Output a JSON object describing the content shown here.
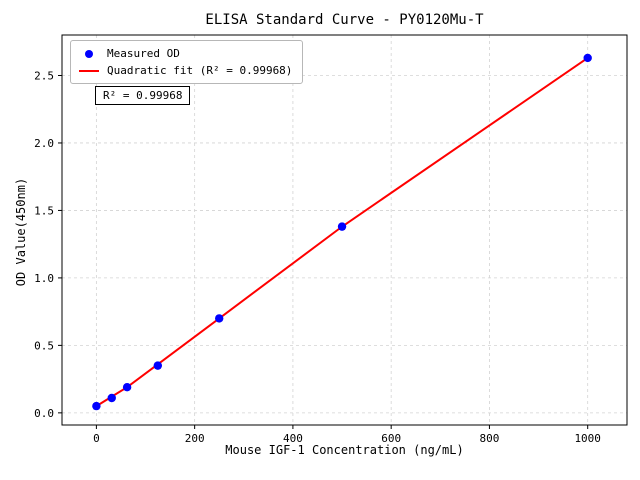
{
  "chart_data": {
    "type": "scatter",
    "title": "ELISA Standard Curve - PY0120Mu-T",
    "xlabel": "Mouse IGF-1 Concentration (ng/mL)",
    "ylabel": "OD Value(450nm)",
    "xlim": [
      -70,
      1080
    ],
    "ylim": [
      -0.09,
      2.8
    ],
    "xticks": [
      0,
      200,
      400,
      600,
      800,
      1000
    ],
    "xtick_labels": [
      "0",
      "200",
      "400",
      "600",
      "800",
      "1000"
    ],
    "yticks": [
      0,
      0.5,
      1.0,
      1.5,
      2.0,
      2.5
    ],
    "ytick_labels": [
      "0.0",
      "0.5",
      "1.0",
      "1.5",
      "2.0",
      "2.5"
    ],
    "grid": true,
    "grid_color": "#d3d3d3",
    "frame_color": "#000000",
    "annotation": "R² = 0.99968",
    "legend_position": "upper-left",
    "series": [
      {
        "name": "Measured OD",
        "type": "scatter",
        "color": "#0000ff",
        "x": [
          0,
          31.25,
          62.5,
          125,
          250,
          500,
          1000
        ],
        "y": [
          0.05,
          0.11,
          0.19,
          0.35,
          0.7,
          1.38,
          2.63
        ]
      },
      {
        "name": "Quadratic fit (R² = 0.99968)",
        "type": "line",
        "color": "#ff0000",
        "width": 2,
        "x": [
          0,
          31.25,
          62.5,
          125,
          250,
          500,
          1000
        ],
        "y": [
          0.05,
          0.12,
          0.19,
          0.36,
          0.7,
          1.38,
          2.63
        ]
      }
    ]
  }
}
